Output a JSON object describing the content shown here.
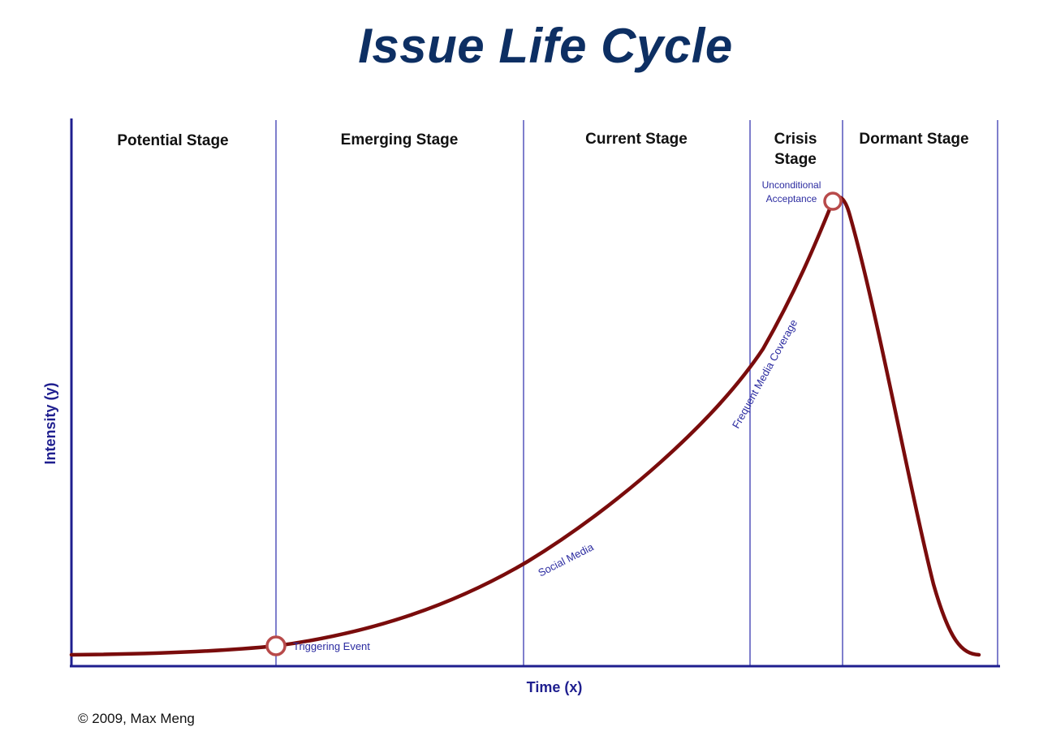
{
  "title": "Issue Life Cycle",
  "stages": [
    {
      "id": "potential",
      "lines": [
        "Potential Stage"
      ]
    },
    {
      "id": "emerging",
      "lines": [
        "Emerging Stage"
      ]
    },
    {
      "id": "current",
      "lines": [
        "Current Stage"
      ]
    },
    {
      "id": "crisis",
      "lines": [
        "Crisis",
        "Stage"
      ]
    },
    {
      "id": "dormant",
      "lines": [
        "Dormant Stage"
      ]
    }
  ],
  "axes": {
    "x_label": "Time (x)",
    "y_label": "Intensity (y)"
  },
  "milestones": {
    "triggering_event": "Triggering Event",
    "unconditional_acceptance_line1": "Unconditional",
    "unconditional_acceptance_line2": "Acceptance"
  },
  "curve_annotations": {
    "social_media": "Social Media",
    "frequent_media_coverage": "Frequent Media Coverage"
  },
  "colors": {
    "title": "#0d2f63",
    "axis": "#1f1f8f",
    "divider": "#3a3ab0",
    "curve": "#7a0c0c",
    "marker": "#b84a4a"
  },
  "copyright": "© 2009, Max Meng"
}
